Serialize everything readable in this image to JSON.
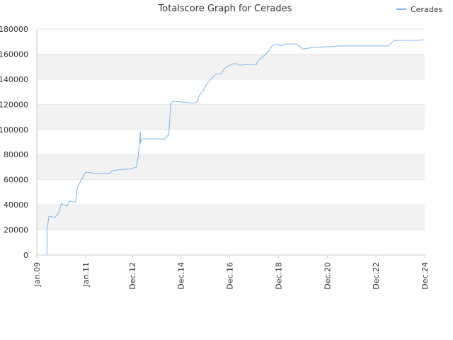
{
  "title": "Totalscore Graph for Cerades",
  "legend": {
    "label": "Cerades",
    "position": "top-right"
  },
  "colors": {
    "line": "#7cb5ec",
    "band": "#f2f2f2",
    "grid": "#e6e6e6",
    "axis": "#cccccc",
    "text": "#333333"
  },
  "chart_data": {
    "type": "line",
    "title": "Totalscore Graph for Cerades",
    "xlabel": "",
    "ylabel": "",
    "ylim": [
      0,
      180000
    ],
    "xlim": [
      "2009-01",
      "2024-12"
    ],
    "yticks": [
      "0",
      "20000",
      "40000",
      "60000",
      "80000",
      "100000",
      "120000",
      "140000",
      "160000",
      "180000"
    ],
    "xticks": [
      {
        "label": "Jan.09",
        "t": "2009-01"
      },
      {
        "label": "Jan.11",
        "t": "2011-01"
      },
      {
        "label": "Dec.12",
        "t": "2012-12"
      },
      {
        "label": "Dec.14",
        "t": "2014-12"
      },
      {
        "label": "Dec.16",
        "t": "2016-12"
      },
      {
        "label": "Dec.18",
        "t": "2018-12"
      },
      {
        "label": "Dec.20",
        "t": "2020-12"
      },
      {
        "label": "Dec.22",
        "t": "2022-12"
      },
      {
        "label": "Dec.24",
        "t": "2024-12"
      }
    ],
    "grid": true,
    "alternate_bands": true,
    "series": [
      {
        "name": "Cerades",
        "points": [
          [
            "2009-06",
            0
          ],
          [
            "2009-06",
            20000
          ],
          [
            "2009-07",
            31000
          ],
          [
            "2009-10",
            30000
          ],
          [
            "2009-12",
            34000
          ],
          [
            "2010-01",
            41000
          ],
          [
            "2010-04",
            39000
          ],
          [
            "2010-05",
            43000
          ],
          [
            "2010-08",
            42000
          ],
          [
            "2010-09",
            54000
          ],
          [
            "2010-11",
            60000
          ],
          [
            "2011-01",
            66000
          ],
          [
            "2011-06",
            65000
          ],
          [
            "2012-01",
            65000
          ],
          [
            "2012-02",
            67000
          ],
          [
            "2012-06",
            68000
          ],
          [
            "2012-11",
            68500
          ],
          [
            "2013-02",
            70000
          ],
          [
            "2013-03",
            79000
          ],
          [
            "2013-04",
            98000
          ],
          [
            "2013-04",
            89000
          ],
          [
            "2013-05",
            92500
          ],
          [
            "2014-04",
            92500
          ],
          [
            "2014-06",
            96000
          ],
          [
            "2014-07",
            121000
          ],
          [
            "2014-08",
            122500
          ],
          [
            "2015-03",
            121500
          ],
          [
            "2015-06",
            121000
          ],
          [
            "2015-08",
            122000
          ],
          [
            "2015-09",
            127000
          ],
          [
            "2015-11",
            131000
          ],
          [
            "2016-01",
            137000
          ],
          [
            "2016-05",
            144000
          ],
          [
            "2016-08",
            144500
          ],
          [
            "2016-09",
            148000
          ],
          [
            "2016-11",
            150500
          ],
          [
            "2017-02",
            152500
          ],
          [
            "2017-04",
            152000
          ],
          [
            "2017-05",
            151000
          ],
          [
            "2017-06",
            151500
          ],
          [
            "2017-08",
            151500
          ],
          [
            "2018-01",
            151500
          ],
          [
            "2018-02",
            155000
          ],
          [
            "2018-05",
            159000
          ],
          [
            "2018-07",
            162000
          ],
          [
            "2018-09",
            167000
          ],
          [
            "2018-12",
            168000
          ],
          [
            "2019-01",
            166500
          ],
          [
            "2019-03",
            168000
          ],
          [
            "2019-09",
            168000
          ],
          [
            "2019-12",
            164000
          ],
          [
            "2020-05",
            165500
          ],
          [
            "2021-03",
            166000
          ],
          [
            "2021-06",
            166500
          ],
          [
            "2022-06",
            166500
          ],
          [
            "2023-06",
            166500
          ],
          [
            "2023-09",
            171000
          ],
          [
            "2024-06",
            171000
          ],
          [
            "2024-09",
            171000
          ],
          [
            "2024-12",
            171500
          ]
        ]
      }
    ]
  }
}
